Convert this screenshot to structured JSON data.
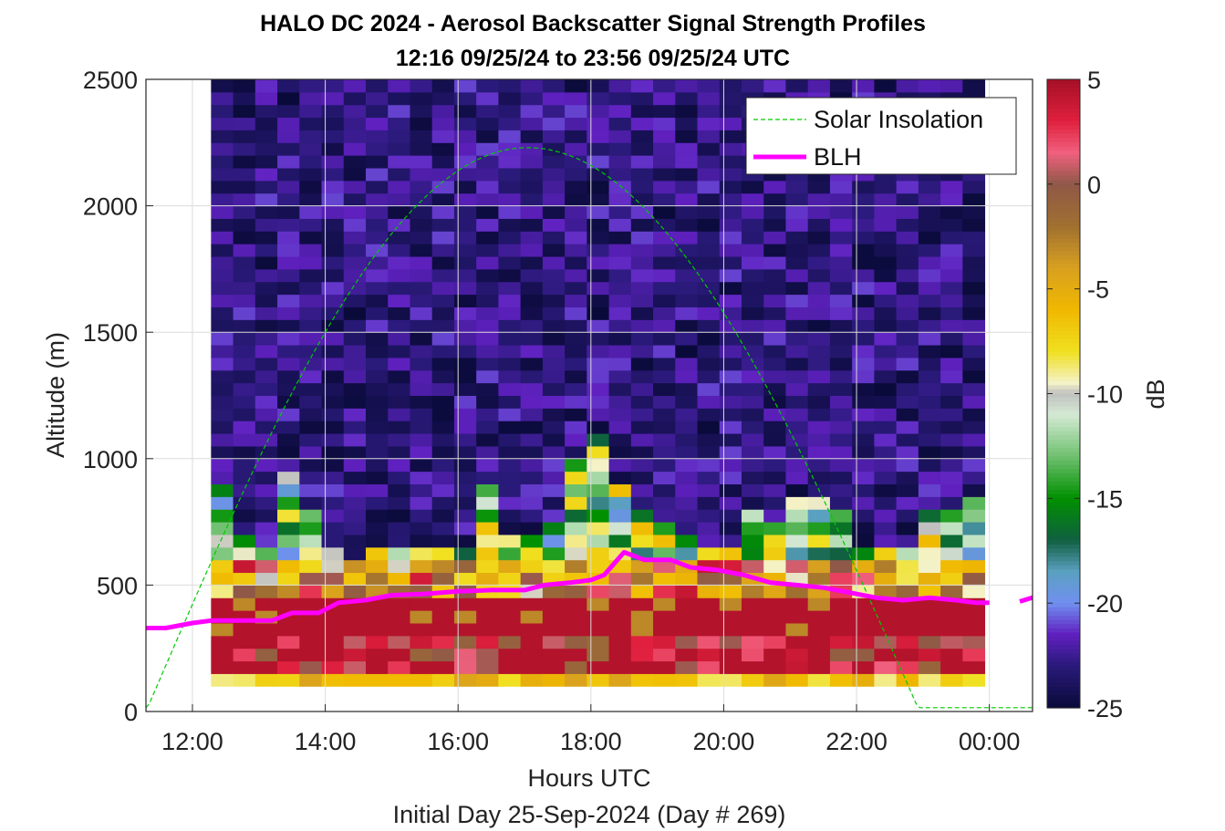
{
  "chart_data": {
    "type": "heatmap",
    "title_line1": "HALO DC 2024 - Aerosol Backscatter Signal Strength Profiles",
    "title_line2": "12:16 09/25/24 to 23:56 09/25/24  UTC",
    "xlabel": "Hours UTC",
    "xlabel2": "Initial Day 25-Sep-2024 (Day # 269)",
    "ylabel": "Altitude (m)",
    "colorbar_label": "dB",
    "xlim_hours": [
      11.3,
      24.65
    ],
    "ylim": [
      0,
      2500
    ],
    "x_ticks": [
      12,
      14,
      16,
      18,
      20,
      22,
      24
    ],
    "x_tick_labels": [
      "12:00",
      "14:00",
      "16:00",
      "18:00",
      "20:00",
      "22:00",
      "00:00"
    ],
    "y_ticks": [
      0,
      500,
      1000,
      1500,
      2000,
      2500
    ],
    "y_tick_labels": [
      "0",
      "500",
      "1000",
      "1500",
      "2000",
      "2500"
    ],
    "clim": [
      -25,
      5
    ],
    "cbar_ticks": [
      5,
      0,
      -5,
      -10,
      -15,
      -20,
      -25
    ],
    "cbar_tick_labels": [
      "5",
      "0",
      "-5",
      "-10",
      "-15",
      "-20",
      "-25"
    ],
    "grid": true,
    "legend_location": "top-right",
    "legend": [
      {
        "name": "Solar Insolation",
        "color": "#00cc00",
        "style": "dashed"
      },
      {
        "name": "BLH",
        "color": "#ff00ff",
        "style": "solid"
      }
    ],
    "heatmap": {
      "x_start_hour": 12.28,
      "x_end_hour": 23.93,
      "bin_width_hours": 0.333,
      "altitude_bin_m": 50,
      "altitude_first_bin_m": 100,
      "altitude_last_bin_m": 2500,
      "surface_layer_top_m": 500,
      "surface_layer_db_range": [
        -6,
        4
      ],
      "aerosol_top_m": [
        880,
        700,
        620,
        920,
        800,
        640,
        600,
        620,
        640,
        620,
        620,
        640,
        880,
        700,
        660,
        740,
        1000,
        1060,
        860,
        800,
        740,
        700,
        640,
        620,
        800,
        720,
        820,
        820,
        780,
        640,
        620,
        640,
        800,
        800,
        820
      ],
      "free_troposphere_db_range": [
        -25,
        -21
      ]
    },
    "blh": {
      "hours": [
        11.3,
        11.6,
        12.0,
        12.3,
        12.7,
        13.0,
        13.2,
        13.5,
        13.9,
        14.2,
        14.6,
        15.0,
        15.5,
        16.0,
        16.5,
        17.0,
        17.3,
        17.7,
        18.0,
        18.2,
        18.5,
        18.8,
        19.2,
        19.5,
        19.9,
        20.3,
        20.7,
        21.1,
        21.5,
        21.9,
        22.3,
        22.7,
        23.1,
        23.5,
        23.8,
        24.0
      ],
      "altitude_m": [
        330,
        330,
        350,
        360,
        360,
        360,
        360,
        390,
        390,
        430,
        440,
        460,
        465,
        475,
        480,
        480,
        500,
        510,
        520,
        540,
        630,
        600,
        600,
        570,
        560,
        540,
        510,
        500,
        490,
        470,
        450,
        440,
        450,
        440,
        430,
        430
      ],
      "isolated_point": {
        "hour": 24.65,
        "altitude_m": 450
      }
    },
    "solar_insolation": {
      "sunrise_hour": 11.3,
      "peak_hour": 17.05,
      "sunset_hour": 22.95,
      "peak_altitude_m": 2230,
      "night_line_altitude_m": 15
    }
  }
}
